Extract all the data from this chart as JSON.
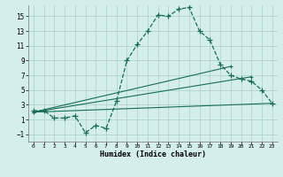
{
  "xlabel": "Humidex (Indice chaleur)",
  "x_ticks": [
    0,
    1,
    2,
    3,
    4,
    5,
    6,
    7,
    8,
    9,
    10,
    11,
    12,
    13,
    14,
    15,
    16,
    17,
    18,
    19,
    20,
    21,
    22,
    23
  ],
  "y_ticks": [
    -1,
    1,
    3,
    5,
    7,
    9,
    11,
    13,
    15
  ],
  "ylim": [
    -2.0,
    16.5
  ],
  "xlim": [
    -0.5,
    23.5
  ],
  "background_color": "#d4eeea",
  "grid_color": "#aed6ce",
  "line_color": "#1a6b5a",
  "line1_x": [
    0,
    1,
    2,
    3,
    4,
    5,
    6,
    7,
    8,
    9,
    10,
    11,
    12,
    13,
    14,
    15,
    16,
    17,
    18,
    19,
    20,
    21,
    22,
    23
  ],
  "line1_y": [
    2.2,
    2.2,
    1.2,
    1.2,
    1.5,
    -0.8,
    0.2,
    -0.2,
    3.5,
    9.0,
    11.2,
    13.0,
    15.2,
    15.0,
    16.0,
    16.2,
    13.0,
    11.8,
    8.5,
    7.0,
    6.5,
    6.2,
    5.0,
    3.2
  ],
  "line2_x": [
    0,
    19
  ],
  "line2_y": [
    2.0,
    8.2
  ],
  "line3_x": [
    0,
    21
  ],
  "line3_y": [
    2.0,
    6.8
  ],
  "line4_x": [
    0,
    23
  ],
  "line4_y": [
    2.0,
    3.2
  ]
}
